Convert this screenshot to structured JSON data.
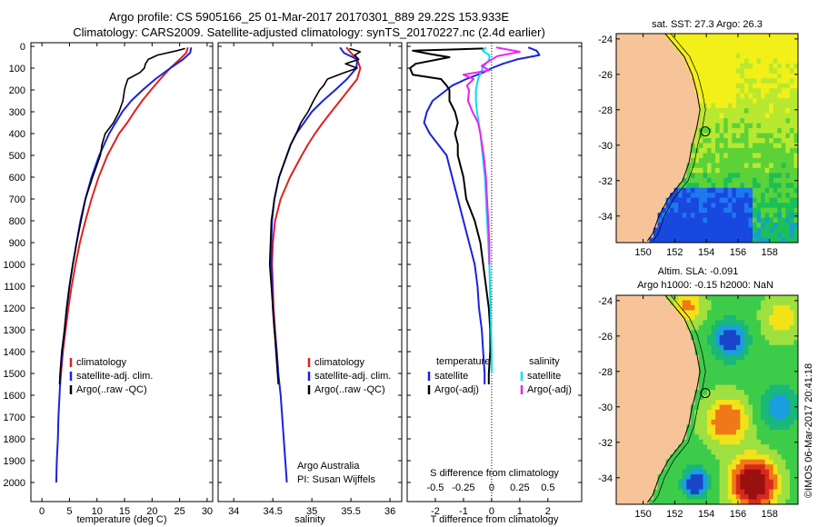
{
  "header": {
    "line1": "Argo profile: CS 5905166_25 01-Mar-2017 20170301_889 29.22S 153.933E",
    "line2": "Climatology: CARS2009. Satellite-adjusted climatology: synTS_20170227.nc (2.4d earlier)"
  },
  "colors": {
    "climatology": "#e02020",
    "satellite": "#1a22e0",
    "argo": "#000000",
    "satellite_s": "#00e0ee",
    "argo_s": "#ee22ee",
    "land": "#f7c49a"
  },
  "chart_data": [
    {
      "id": "temperature",
      "type": "line",
      "xlabel": "temperature (deg C)",
      "ylabel": "",
      "xlim": [
        -2,
        31
      ],
      "ylim": [
        2100,
        0
      ],
      "xticks": [
        "0",
        "5",
        "10",
        "15",
        "20",
        "25",
        "30"
      ],
      "xtick_values": [
        0,
        5,
        10,
        15,
        20,
        25,
        30
      ],
      "yticks": [
        "0",
        "100",
        "200",
        "300",
        "400",
        "500",
        "600",
        "700",
        "800",
        "900",
        "1000",
        "1100",
        "1200",
        "1300",
        "1400",
        "1500",
        "1600",
        "1700",
        "1800",
        "1900",
        "2000"
      ],
      "ytick_values": [
        0,
        100,
        200,
        300,
        400,
        500,
        600,
        700,
        800,
        900,
        1000,
        1100,
        1200,
        1300,
        1400,
        1500,
        1600,
        1700,
        1800,
        1900,
        2000
      ],
      "legend": [
        "climatology",
        "satellite-adj. clim.",
        "Argo(..raw -QC)"
      ],
      "series": [
        {
          "name": "climatology",
          "depth": [
            5,
            30,
            60,
            100,
            150,
            200,
            250,
            300,
            350,
            400,
            500,
            600,
            700,
            800,
            900,
            1000,
            1100,
            1200,
            1300,
            1400,
            1550
          ],
          "values": [
            26.5,
            26.2,
            25.0,
            23.3,
            21.5,
            19.8,
            18.2,
            16.8,
            15.5,
            14.0,
            11.9,
            10.3,
            9.0,
            7.9,
            6.9,
            6.1,
            5.4,
            4.8,
            4.3,
            3.8,
            3.3
          ]
        },
        {
          "name": "satellite-adj. clim.",
          "depth": [
            5,
            30,
            60,
            100,
            150,
            200,
            250,
            300,
            350,
            400,
            500,
            600,
            700,
            800,
            900,
            1000,
            1100,
            1200,
            1300,
            1400,
            1500,
            1600,
            1700,
            1800,
            1900,
            2000
          ],
          "values": [
            27.1,
            26.9,
            25.6,
            23.3,
            20.6,
            18.3,
            16.2,
            14.6,
            13.4,
            12.2,
            10.4,
            9.0,
            7.9,
            7.0,
            6.3,
            5.6,
            5.0,
            4.5,
            4.1,
            3.7,
            3.4,
            3.2,
            3.0,
            2.9,
            2.7,
            2.6
          ]
        },
        {
          "name": "Argo(..raw -QC)",
          "depth": [
            10,
            20,
            40,
            60,
            80,
            100,
            120,
            150,
            180,
            200,
            250,
            300,
            350,
            400,
            450,
            500,
            600,
            700,
            800,
            900,
            1000,
            1100,
            1200,
            1300,
            1400,
            1500,
            1550
          ],
          "values": [
            26.0,
            24.5,
            21.0,
            19.3,
            18.8,
            18.6,
            17.8,
            15.6,
            15.2,
            15.0,
            14.7,
            14.0,
            13.0,
            11.5,
            10.9,
            10.6,
            9.2,
            7.9,
            7.1,
            6.3,
            5.6,
            5.0,
            4.5,
            4.1,
            3.6,
            3.3,
            3.2
          ]
        }
      ]
    },
    {
      "id": "salinity",
      "type": "line",
      "xlabel": "salinity",
      "ylabel": "",
      "xlim": [
        33.8,
        36.15
      ],
      "ylim": [
        2100,
        0
      ],
      "xticks": [
        "34",
        "34.5",
        "35",
        "35.5",
        "36"
      ],
      "xtick_values": [
        34,
        34.5,
        35,
        35.5,
        36
      ],
      "legend": [
        "climatology",
        "satellite-adj. clim.",
        "Argo(..raw -QC)"
      ],
      "annotation": [
        "Argo Australia",
        "PI: Susan Wijffels"
      ],
      "series": [
        {
          "name": "climatology",
          "depth": [
            5,
            30,
            60,
            100,
            150,
            200,
            250,
            300,
            350,
            400,
            450,
            500,
            600,
            700,
            800,
            900,
            1000,
            1100,
            1200,
            1300,
            1400,
            1550
          ],
          "values": [
            35.44,
            35.5,
            35.58,
            35.62,
            35.58,
            35.47,
            35.36,
            35.25,
            35.14,
            35.04,
            34.95,
            34.87,
            34.72,
            34.6,
            34.53,
            34.5,
            34.49,
            34.5,
            34.51,
            34.53,
            34.55,
            34.58
          ]
        },
        {
          "name": "satellite-adj. clim.",
          "depth": [
            5,
            30,
            60,
            100,
            150,
            200,
            250,
            300,
            350,
            400,
            450,
            500,
            600,
            700,
            800,
            900,
            1000,
            1100,
            1200,
            1300,
            1400,
            1500,
            1600,
            1700,
            1800,
            1900,
            2000
          ],
          "values": [
            35.36,
            35.41,
            35.58,
            35.57,
            35.45,
            35.3,
            35.14,
            35.0,
            34.9,
            34.8,
            34.73,
            34.68,
            34.58,
            34.52,
            34.49,
            34.48,
            34.48,
            34.49,
            34.5,
            34.52,
            34.55,
            34.57,
            34.6,
            34.62,
            34.64,
            34.66,
            34.68
          ]
        },
        {
          "name": "Argo(..raw -QC)",
          "depth": [
            10,
            25,
            40,
            60,
            80,
            100,
            120,
            150,
            180,
            200,
            250,
            300,
            350,
            400,
            450,
            500,
            600,
            700,
            800,
            900,
            1000,
            1100,
            1200,
            1300,
            1400,
            1500,
            1550
          ],
          "values": [
            35.48,
            35.62,
            35.55,
            35.6,
            35.43,
            35.58,
            35.42,
            35.2,
            35.15,
            35.1,
            35.02,
            34.95,
            34.86,
            34.8,
            34.73,
            34.68,
            34.58,
            34.52,
            34.48,
            34.47,
            34.46,
            34.48,
            34.5,
            34.52,
            34.54,
            34.56,
            34.57
          ]
        }
      ]
    },
    {
      "id": "differences",
      "type": "line",
      "xlabel": "T difference from climatology",
      "xlabel2": "S difference from climatology",
      "xlim": [
        -3,
        3.2
      ],
      "ylim": [
        2100,
        0
      ],
      "xticks": [
        "-2",
        "-1",
        "0",
        "1",
        "2"
      ],
      "xtick_values": [
        -2,
        -1,
        0,
        1,
        2
      ],
      "x2ticks": [
        "-0.5",
        "-0.25",
        "0",
        "0.25",
        "0.5"
      ],
      "x2tick_values": [
        -0.5,
        -0.25,
        0,
        0.25,
        0.5
      ],
      "legend_groups": [
        "temperature",
        "salinity"
      ],
      "legend": [
        "satellite",
        "Argo(-adj)",
        "satellite",
        "Argo(-adj)"
      ],
      "series": [
        {
          "name": "T satellite",
          "depth": [
            5,
            20,
            40,
            60,
            80,
            100,
            120,
            150,
            180,
            200,
            250,
            300,
            350,
            400,
            450,
            500,
            600,
            700,
            800,
            900,
            1000,
            1100,
            1200,
            1300,
            1400,
            1500,
            1550
          ],
          "values": [
            1.3,
            1.6,
            1.7,
            0.9,
            0.4,
            0.0,
            -0.3,
            -0.9,
            -1.4,
            -1.6,
            -2.1,
            -2.3,
            -2.4,
            -2.2,
            -1.9,
            -1.6,
            -1.4,
            -1.2,
            -1.0,
            -0.8,
            -0.6,
            -0.5,
            -0.45,
            -0.35,
            -0.3,
            -0.25,
            -0.25
          ]
        },
        {
          "name": "T Argo(-adj)",
          "depth": [
            10,
            20,
            35,
            50,
            80,
            100,
            130,
            150,
            180,
            200,
            250,
            300,
            350,
            400,
            450,
            500,
            600,
            700,
            800,
            900,
            1000,
            1100,
            1200,
            1300,
            1400,
            1500,
            1550
          ],
          "values": [
            -0.3,
            -2.8,
            -2.2,
            -1.5,
            -2.7,
            -2.9,
            -2.8,
            -1.8,
            -1.6,
            -1.5,
            -1.5,
            -1.3,
            -1.2,
            -1.3,
            -1.2,
            -1.2,
            -1.0,
            -0.9,
            -0.6,
            -0.4,
            -0.3,
            -0.2,
            -0.1,
            -0.05,
            -0.05,
            -0.1,
            -0.1
          ]
        },
        {
          "name": "S satellite",
          "depth": [
            5,
            20,
            40,
            60,
            80,
            100,
            150,
            200,
            250,
            300,
            400,
            500,
            600,
            700,
            800,
            900,
            1000,
            1200,
            1400,
            1500
          ],
          "values": [
            -0.05,
            -0.08,
            -0.02,
            -0.02,
            -0.05,
            -0.08,
            -0.12,
            -0.14,
            -0.14,
            -0.13,
            -0.1,
            -0.08,
            -0.06,
            -0.05,
            -0.04,
            -0.03,
            -0.02,
            -0.01,
            0.0,
            0.0
          ]
        },
        {
          "name": "S Argo(-adj)",
          "depth": [
            5,
            25,
            45,
            70,
            90,
            110,
            130,
            150,
            180,
            200,
            250,
            300,
            350,
            400,
            500,
            600,
            700,
            800,
            900,
            1000
          ],
          "values": [
            0.04,
            0.25,
            0.05,
            -0.03,
            -0.09,
            -0.02,
            -0.25,
            -0.16,
            -0.22,
            -0.2,
            -0.21,
            -0.17,
            -0.12,
            -0.1,
            -0.07,
            -0.05,
            -0.04,
            -0.03,
            -0.02,
            -0.02
          ]
        }
      ]
    },
    {
      "id": "sst-map",
      "type": "heatmap",
      "title": "sat. SST: 27.3  Argo: 26.3",
      "xticks": [
        "150",
        "152",
        "154",
        "156",
        "158"
      ],
      "xtick_values": [
        150,
        152,
        154,
        156,
        158
      ],
      "yticks": [
        "-24",
        "-26",
        "-28",
        "-30",
        "-32",
        "-34"
      ],
      "ytick_values": [
        -24,
        -26,
        -28,
        -30,
        -32,
        -34
      ],
      "xlim": [
        148.3,
        159.8
      ],
      "ylim": [
        -35.5,
        -23.7
      ],
      "float_position": [
        153.933,
        -29.22
      ]
    },
    {
      "id": "sla-map",
      "type": "heatmap",
      "title": "Altim. SLA: -0.091",
      "subtitle": "Argo h1000: -0.15 h2000: NaN",
      "xticks": [
        "150",
        "152",
        "154",
        "156",
        "158"
      ],
      "xtick_values": [
        150,
        152,
        154,
        156,
        158
      ],
      "yticks": [
        "-24",
        "-26",
        "-28",
        "-30",
        "-32",
        "-34"
      ],
      "ytick_values": [
        -24,
        -26,
        -28,
        -30,
        -32,
        -34
      ],
      "xlim": [
        148.3,
        159.8
      ],
      "ylim": [
        -35.5,
        -23.7
      ],
      "float_position": [
        153.933,
        -29.22
      ]
    }
  ],
  "footer": {
    "credit": "©IMOS 06-Mar-2017 20:41:18"
  }
}
